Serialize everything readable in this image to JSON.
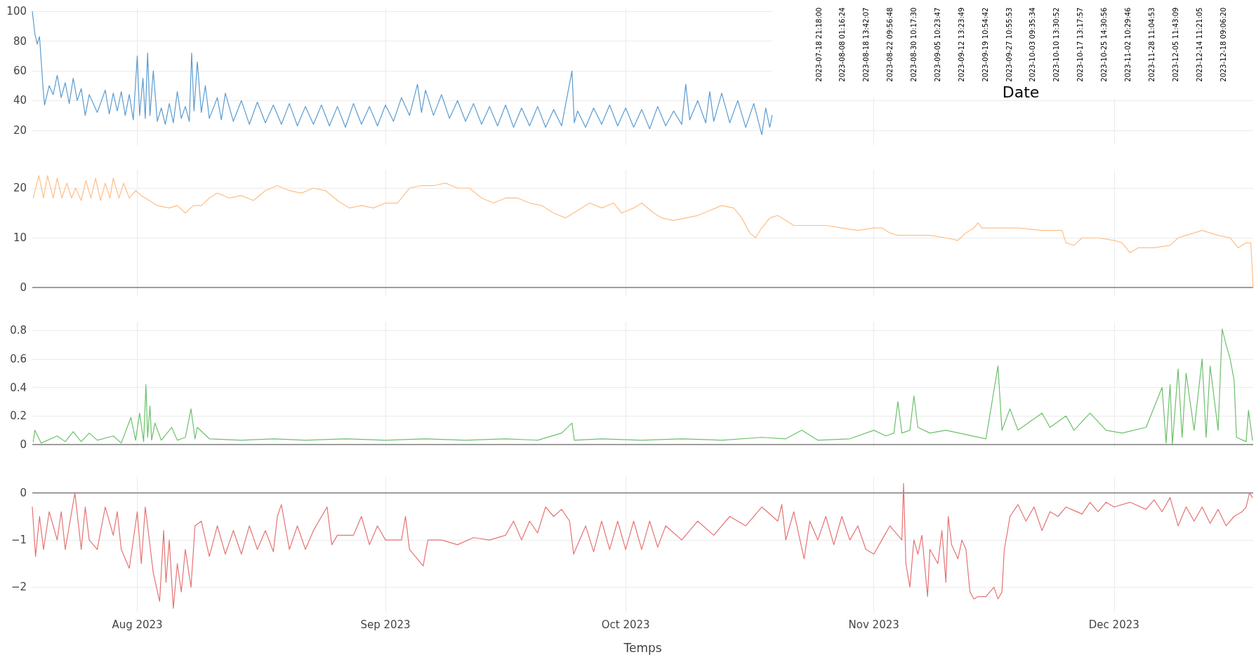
{
  "chart_data": [
    {
      "type": "line",
      "xlim": [
        "2023-07-18T21:18:00",
        "2023-12-18T09:06:20"
      ],
      "ylim": [
        10,
        102
      ],
      "yticks": [
        20,
        40,
        60,
        80,
        100
      ],
      "xticks": [
        {
          "value": "2023-08-01",
          "label": null
        },
        {
          "value": "2023-09-01",
          "label": null
        },
        {
          "value": "2023-10-01",
          "label": null
        },
        {
          "value": "2023-11-01",
          "label": null
        },
        {
          "value": "2023-12-01",
          "label": null
        }
      ],
      "tick_labels": "y",
      "grid": true,
      "marker": "none",
      "line_style": "solid",
      "series": [
        {
          "color": "#5a9bd0",
          "x": [
            "2023-07-18T21:18",
            "2023-07-19T05:00",
            "2023-07-19T12:00",
            "2023-07-19T19:00",
            "2023-07-20T05:00",
            "2023-07-20T10:00",
            "2023-07-21T00:00",
            "2023-07-21T12:00",
            "2023-07-22T00:00",
            "2023-07-22T12:00",
            "2023-07-23T00:00",
            "2023-07-23T12:00",
            "2023-07-24T00:00",
            "2023-07-24T12:00",
            "2023-07-25T00:00",
            "2023-07-25T12:00",
            "2023-07-26T00:00",
            "2023-07-27T00:00",
            "2023-07-28T00:00",
            "2023-07-28T12:00",
            "2023-07-29T00:00",
            "2023-07-29T12:00",
            "2023-07-30T00:00",
            "2023-07-30T12:00",
            "2023-07-31T00:00",
            "2023-07-31T12:00",
            "2023-08-01T00:00",
            "2023-08-01T07:00",
            "2023-08-01T17:00",
            "2023-08-02T00:00",
            "2023-08-02T07:00",
            "2023-08-02T14:00",
            "2023-08-03T00:00",
            "2023-08-03T12:00",
            "2023-08-04T00:00",
            "2023-08-04T12:00",
            "2023-08-05T00:00",
            "2023-08-05T12:00",
            "2023-08-06T00:00",
            "2023-08-06T12:00",
            "2023-08-07T00:00",
            "2023-08-07T12:00",
            "2023-08-07T19:00",
            "2023-08-08T02:00",
            "2023-08-08T12:00",
            "2023-08-09T00:00",
            "2023-08-09T12:00",
            "2023-08-10T00:00",
            "2023-08-11T00:00",
            "2023-08-11T12:00",
            "2023-08-12T00:00",
            "2023-08-13T00:00",
            "2023-08-14T00:00",
            "2023-08-15T00:00",
            "2023-08-16T00:00",
            "2023-08-17T00:00",
            "2023-08-18T00:00",
            "2023-08-19T00:00",
            "2023-08-20T00:00",
            "2023-08-21T00:00",
            "2023-08-22T00:00",
            "2023-08-23T00:00",
            "2023-08-24T00:00",
            "2023-08-25T00:00",
            "2023-08-26T00:00",
            "2023-08-27T00:00",
            "2023-08-28T00:00",
            "2023-08-29T00:00",
            "2023-08-30T00:00",
            "2023-08-31T00:00",
            "2023-09-01T00:00",
            "2023-09-02T00:00",
            "2023-09-03T00:00",
            "2023-09-04T00:00",
            "2023-09-05T00:00",
            "2023-09-05T12:00",
            "2023-09-06T00:00",
            "2023-09-07T00:00",
            "2023-09-08T00:00",
            "2023-09-09T00:00",
            "2023-09-10T00:00",
            "2023-09-11T00:00",
            "2023-09-12T00:00",
            "2023-09-13T00:00",
            "2023-09-14T00:00",
            "2023-09-15T00:00",
            "2023-09-16T00:00",
            "2023-09-17T00:00",
            "2023-09-18T00:00",
            "2023-09-19T00:00",
            "2023-09-20T00:00",
            "2023-09-21T00:00",
            "2023-09-22T00:00",
            "2023-09-23T00:00",
            "2023-09-24T07:00",
            "2023-09-24T14:00",
            "2023-09-25T00:00",
            "2023-09-26T00:00",
            "2023-09-27T00:00",
            "2023-09-28T00:00",
            "2023-09-29T00:00",
            "2023-09-30T00:00",
            "2023-10-01T00:00",
            "2023-10-02T00:00",
            "2023-10-03T00:00",
            "2023-10-04T00:00",
            "2023-10-05T00:00",
            "2023-10-06T00:00",
            "2023-10-07T00:00",
            "2023-10-08T00:00",
            "2023-10-08T12:00",
            "2023-10-09T00:00",
            "2023-10-10T00:00",
            "2023-10-11T00:00",
            "2023-10-11T12:00",
            "2023-10-12T00:00",
            "2023-10-13T00:00",
            "2023-10-14T00:00",
            "2023-10-15T00:00",
            "2023-10-16T00:00",
            "2023-10-17T00:00",
            "2023-10-18T00:00",
            "2023-10-18T12:00",
            "2023-10-19T00:00",
            "2023-10-19T07:00"
          ],
          "values": [
            100,
            85,
            78,
            83,
            50,
            37,
            50,
            44,
            57,
            42,
            52,
            38,
            55,
            40,
            48,
            30,
            44,
            32,
            47,
            31,
            45,
            33,
            46,
            30,
            44,
            27,
            70,
            30,
            55,
            28,
            72,
            30,
            60,
            26,
            35,
            24,
            38,
            25,
            46,
            28,
            36,
            26,
            72,
            33,
            66,
            32,
            50,
            28,
            42,
            27,
            45,
            26,
            40,
            24,
            39,
            25,
            37,
            24,
            38,
            23,
            36,
            24,
            37,
            23,
            36,
            22,
            38,
            24,
            36,
            23,
            37,
            26,
            42,
            30,
            51,
            32,
            47,
            30,
            44,
            28,
            40,
            26,
            38,
            24,
            36,
            23,
            37,
            22,
            35,
            23,
            36,
            22,
            34,
            23,
            60,
            25,
            33,
            22,
            35,
            24,
            37,
            23,
            35,
            22,
            34,
            21,
            36,
            23,
            33,
            24,
            51,
            27,
            40,
            25,
            46,
            26,
            45,
            25,
            40,
            22,
            38,
            17,
            35,
            22,
            30
          ]
        }
      ]
    },
    {
      "type": "line",
      "xlim": [
        "2023-07-18T21:18:00",
        "2023-12-18T09:06:20"
      ],
      "ylim": [
        -1.8,
        23.7
      ],
      "yticks": [
        0,
        10,
        20
      ],
      "xticks": [
        {
          "value": "2023-08-01",
          "label": null
        },
        {
          "value": "2023-09-01",
          "label": null
        },
        {
          "value": "2023-10-01",
          "label": null
        },
        {
          "value": "2023-11-01",
          "label": null
        },
        {
          "value": "2023-12-01",
          "label": null
        }
      ],
      "tick_labels": "y",
      "grid": true,
      "marker": "none",
      "line_style": "solid",
      "ref_lines": [
        {
          "axis": "y",
          "value": 0,
          "color": "#808080"
        }
      ],
      "series": [
        {
          "color": "#ffbe85",
          "x": [
            "2023-07-19T00:00",
            "2023-07-19T17:00",
            "2023-07-20T07:00",
            "2023-07-20T19:00",
            "2023-07-21T12:00",
            "2023-07-22T00:00",
            "2023-07-22T14:00",
            "2023-07-23T05:00",
            "2023-07-23T19:00",
            "2023-07-24T07:00",
            "2023-07-25T00:00",
            "2023-07-25T14:00",
            "2023-07-26T05:00",
            "2023-07-26T19:00",
            "2023-07-27T10:00",
            "2023-07-28T00:00",
            "2023-07-28T14:00",
            "2023-07-29T00:00",
            "2023-07-29T17:00",
            "2023-07-30T07:00",
            "2023-07-31T00:00",
            "2023-07-31T19:00",
            "2023-08-01T12:00",
            "2023-08-02T12:00",
            "2023-08-03T12:00",
            "2023-08-05T00:00",
            "2023-08-06T00:00",
            "2023-08-07T00:00",
            "2023-08-08T00:00",
            "2023-08-09T00:00",
            "2023-08-10T00:00",
            "2023-08-11T00:00",
            "2023-08-12T12:00",
            "2023-08-14T00:00",
            "2023-08-15T12:00",
            "2023-08-17T00:00",
            "2023-08-18T12:00",
            "2023-08-20T00:00",
            "2023-08-21T12:00",
            "2023-08-23T00:00",
            "2023-08-24T12:00",
            "2023-08-26T00:00",
            "2023-08-27T12:00",
            "2023-08-29T00:00",
            "2023-08-30T12:00",
            "2023-09-01T00:00",
            "2023-09-02T12:00",
            "2023-09-04T00:00",
            "2023-09-05T12:00",
            "2023-09-07T00:00",
            "2023-09-08T12:00",
            "2023-09-10T00:00",
            "2023-09-11T12:00",
            "2023-09-13T00:00",
            "2023-09-14T12:00",
            "2023-09-16T00:00",
            "2023-09-17T12:00",
            "2023-09-19T00:00",
            "2023-09-20T12:00",
            "2023-09-22T00:00",
            "2023-09-23T12:00",
            "2023-09-25T00:00",
            "2023-09-26T12:00",
            "2023-09-28T00:00",
            "2023-09-29T12:00",
            "2023-09-30T12:00",
            "2023-10-02T00:00",
            "2023-10-03T00:00",
            "2023-10-04T12:00",
            "2023-10-05T12:00",
            "2023-10-07T00:00",
            "2023-10-08T12:00",
            "2023-10-10T00:00",
            "2023-10-11T12:00",
            "2023-10-13T00:00",
            "2023-10-14T12:00",
            "2023-10-15T12:00",
            "2023-10-16T12:00",
            "2023-10-17T05:00",
            "2023-10-18T00:00",
            "2023-10-19T00:00",
            "2023-10-20T00:00",
            "2023-10-21T00:00",
            "2023-10-22T00:00",
            "2023-10-24T00:00",
            "2023-10-26T00:00",
            "2023-10-28T00:00",
            "2023-10-30T00:00",
            "2023-11-01T00:00",
            "2023-11-02T00:00",
            "2023-11-03T00:00",
            "2023-11-04T00:00",
            "2023-11-06T00:00",
            "2023-11-08T00:00",
            "2023-11-10T00:00",
            "2023-11-11T12:00",
            "2023-11-12T12:00",
            "2023-11-13T12:00",
            "2023-11-14T00:00",
            "2023-11-14T12:00",
            "2023-11-17T00:00",
            "2023-11-19T00:00",
            "2023-11-22T00:00",
            "2023-11-24T12:00",
            "2023-11-25T00:00",
            "2023-11-26T00:00",
            "2023-11-27T00:00",
            "2023-11-29T00:00",
            "2023-12-01T00:00",
            "2023-12-02T00:00",
            "2023-12-03T00:00",
            "2023-12-04T00:00",
            "2023-12-06T00:00",
            "2023-12-08T00:00",
            "2023-12-09T00:00",
            "2023-12-10T00:00",
            "2023-12-12T00:00",
            "2023-12-14T00:00",
            "2023-12-15T12:00",
            "2023-12-16T12:00",
            "2023-12-17T12:00",
            "2023-12-18T02:00",
            "2023-12-18T09:00"
          ],
          "values": [
            18,
            22.5,
            18,
            22.5,
            18,
            22,
            18,
            21,
            18,
            20,
            17.5,
            21.5,
            18,
            22,
            17.5,
            21,
            18,
            22,
            18,
            21,
            18,
            19.5,
            18.5,
            17.5,
            16.5,
            16,
            16.5,
            15,
            16.5,
            16.5,
            18,
            19,
            18,
            18.5,
            17.5,
            19.5,
            20.5,
            19.5,
            19,
            20,
            19.5,
            17.5,
            16,
            16.5,
            16,
            17,
            17,
            20,
            20.5,
            20.5,
            21,
            20,
            20,
            18,
            17,
            18,
            18,
            17,
            16.5,
            15,
            14,
            15.5,
            17,
            16,
            17,
            15,
            16,
            17,
            15,
            14,
            13.5,
            14,
            14.5,
            15.5,
            16.5,
            16,
            14,
            11,
            10,
            12,
            14,
            14.5,
            13.5,
            12.5,
            12.5,
            12.5,
            12,
            11.5,
            12,
            12,
            11,
            10.5,
            10.5,
            10.5,
            10,
            9.5,
            11,
            12,
            13,
            12,
            12,
            12,
            11.5,
            11.5,
            9,
            8.5,
            10,
            10,
            9.5,
            9,
            7,
            8,
            8,
            8.5,
            10,
            10.5,
            11.5,
            10.5,
            10,
            8,
            9,
            9,
            0
          ]
        }
      ]
    },
    {
      "type": "line",
      "xlim": [
        "2023-07-18T21:18:00",
        "2023-12-18T09:06:20"
      ],
      "ylim": [
        -0.02,
        0.86
      ],
      "yticks": [
        0,
        0.2,
        0.4,
        0.6,
        0.8
      ],
      "xticks": [
        {
          "value": "2023-08-01",
          "label": null
        },
        {
          "value": "2023-09-01",
          "label": null
        },
        {
          "value": "2023-10-01",
          "label": null
        },
        {
          "value": "2023-11-01",
          "label": null
        },
        {
          "value": "2023-12-01",
          "label": null
        }
      ],
      "tick_labels": "y",
      "grid": true,
      "marker": "none",
      "line_style": "solid",
      "ref_lines": [
        {
          "axis": "y",
          "value": 0,
          "color": "#808080"
        }
      ],
      "series": [
        {
          "color": "#6cc06c",
          "x": [
            "2023-07-19T00:00",
            "2023-07-19T05:00",
            "2023-07-20T00:00",
            "2023-07-22T00:00",
            "2023-07-23T00:00",
            "2023-07-24T00:00",
            "2023-07-25T00:00",
            "2023-07-26T00:00",
            "2023-07-27T00:00",
            "2023-07-29T00:00",
            "2023-07-30T00:00",
            "2023-07-31T05:00",
            "2023-07-31T19:00",
            "2023-08-01T07:00",
            "2023-08-01T19:00",
            "2023-08-02T02:00",
            "2023-08-02T07:00",
            "2023-08-02T14:00",
            "2023-08-02T19:00",
            "2023-08-03T05:00",
            "2023-08-04T00:00",
            "2023-08-05T07:00",
            "2023-08-06T00:00",
            "2023-08-07T00:00",
            "2023-08-07T17:00",
            "2023-08-08T05:00",
            "2023-08-08T12:00",
            "2023-08-10T00:00",
            "2023-08-14T00:00",
            "2023-08-18T00:00",
            "2023-08-22T00:00",
            "2023-08-27T00:00",
            "2023-09-01T00:00",
            "2023-09-06T00:00",
            "2023-09-11T00:00",
            "2023-09-16T00:00",
            "2023-09-20T00:00",
            "2023-09-23T00:00",
            "2023-09-24T07:00",
            "2023-09-24T14:00",
            "2023-09-28T00:00",
            "2023-10-03T00:00",
            "2023-10-08T00:00",
            "2023-10-13T00:00",
            "2023-10-18T00:00",
            "2023-10-21T00:00",
            "2023-10-23T00:00",
            "2023-10-25T00:00",
            "2023-10-29T00:00",
            "2023-11-01T00:00",
            "2023-11-02T12:00",
            "2023-11-03T12:00",
            "2023-11-04T00:00",
            "2023-11-04T12:00",
            "2023-11-05T12:00",
            "2023-11-06T00:00",
            "2023-11-06T12:00",
            "2023-11-08T00:00",
            "2023-11-10T00:00",
            "2023-11-15T00:00",
            "2023-11-16T00:00",
            "2023-11-16T12:00",
            "2023-11-17T00:00",
            "2023-11-18T00:00",
            "2023-11-19T00:00",
            "2023-11-22T00:00",
            "2023-11-23T00:00",
            "2023-11-25T00:00",
            "2023-11-26T00:00",
            "2023-11-28T00:00",
            "2023-11-30T00:00",
            "2023-12-02T00:00",
            "2023-12-05T00:00",
            "2023-12-07T00:00",
            "2023-12-07T12:00",
            "2023-12-08T00:00",
            "2023-12-08T07:00",
            "2023-12-09T00:00",
            "2023-12-09T12:00",
            "2023-12-10T00:00",
            "2023-12-11T00:00",
            "2023-12-12T00:00",
            "2023-12-12T12:00",
            "2023-12-13T00:00",
            "2023-12-14T00:00",
            "2023-12-14T12:00",
            "2023-12-15T00:00",
            "2023-12-15T12:00",
            "2023-12-16T00:00",
            "2023-12-16T07:00",
            "2023-12-17T12:00",
            "2023-12-17T19:00",
            "2023-12-18T07:00"
          ],
          "values": [
            0.02,
            0.1,
            0.01,
            0.06,
            0.02,
            0.09,
            0.02,
            0.08,
            0.03,
            0.06,
            0.01,
            0.19,
            0.03,
            0.22,
            0.02,
            0.42,
            0.05,
            0.27,
            0.03,
            0.15,
            0.03,
            0.12,
            0.03,
            0.05,
            0.25,
            0.04,
            0.12,
            0.04,
            0.03,
            0.04,
            0.03,
            0.04,
            0.03,
            0.04,
            0.03,
            0.04,
            0.03,
            0.08,
            0.15,
            0.03,
            0.04,
            0.03,
            0.04,
            0.03,
            0.05,
            0.04,
            0.1,
            0.03,
            0.04,
            0.1,
            0.06,
            0.08,
            0.3,
            0.08,
            0.1,
            0.34,
            0.12,
            0.08,
            0.1,
            0.04,
            0.38,
            0.55,
            0.1,
            0.25,
            0.1,
            0.22,
            0.12,
            0.2,
            0.1,
            0.22,
            0.1,
            0.08,
            0.12,
            0.4,
            0.01,
            0.42,
            0,
            0.53,
            0.05,
            0.5,
            0.1,
            0.6,
            0.05,
            0.55,
            0.1,
            0.81,
            0.7,
            0.6,
            0.45,
            0.05,
            0.02,
            0.24,
            0.03
          ]
        }
      ]
    },
    {
      "type": "line",
      "xlabel": "Temps",
      "xlim": [
        "2023-07-18T21:18:00",
        "2023-12-18T09:06:20"
      ],
      "ylim": [
        -2.53,
        0.34
      ],
      "yticks": [
        {
          "value": -2,
          "label": "−2"
        },
        {
          "value": -1,
          "label": "−1"
        },
        0
      ],
      "xticks": [
        {
          "value": "2023-08-01",
          "label": "Aug 2023"
        },
        {
          "value": "2023-09-01",
          "label": "Sep 2023"
        },
        {
          "value": "2023-10-01",
          "label": "Oct 2023"
        },
        {
          "value": "2023-11-01",
          "label": "Nov 2023"
        },
        {
          "value": "2023-12-01",
          "label": "Dec 2023"
        }
      ],
      "grid": true,
      "marker": "none",
      "line_style": "solid",
      "ref_lines": [
        {
          "axis": "y",
          "value": 0,
          "color": "#808080"
        }
      ],
      "series": [
        {
          "color": "#e57373",
          "x": [
            "2023-07-18T21:18",
            "2023-07-19T07:00",
            "2023-07-19T19:00",
            "2023-07-20T07:00",
            "2023-07-21T00:00",
            "2023-07-22T00:00",
            "2023-07-22T12:00",
            "2023-07-23T00:00",
            "2023-07-24T05:00",
            "2023-07-25T00:00",
            "2023-07-25T12:00",
            "2023-07-26T00:00",
            "2023-07-27T00:00",
            "2023-07-28T00:00",
            "2023-07-29T00:00",
            "2023-07-29T12:00",
            "2023-07-30T00:00",
            "2023-07-31T00:00",
            "2023-08-01T00:00",
            "2023-08-01T12:00",
            "2023-08-02T00:00",
            "2023-08-03T00:00",
            "2023-08-03T19:00",
            "2023-08-04T07:00",
            "2023-08-04T14:00",
            "2023-08-05T00:00",
            "2023-08-05T12:00",
            "2023-08-06T00:00",
            "2023-08-06T12:00",
            "2023-08-07T00:00",
            "2023-08-07T17:00",
            "2023-08-08T05:00",
            "2023-08-09T00:00",
            "2023-08-10T00:00",
            "2023-08-11T00:00",
            "2023-08-12T00:00",
            "2023-08-13T00:00",
            "2023-08-14T00:00",
            "2023-08-15T00:00",
            "2023-08-16T00:00",
            "2023-08-17T00:00",
            "2023-08-18T00:00",
            "2023-08-18T12:00",
            "2023-08-19T00:00",
            "2023-08-20T00:00",
            "2023-08-21T00:00",
            "2023-08-22T00:00",
            "2023-08-23T00:00",
            "2023-08-24T17:00",
            "2023-08-25T07:00",
            "2023-08-26T00:00",
            "2023-08-28T00:00",
            "2023-08-29T00:00",
            "2023-08-30T00:00",
            "2023-08-31T00:00",
            "2023-09-01T00:00",
            "2023-09-03T00:00",
            "2023-09-03T12:00",
            "2023-09-04T00:00",
            "2023-09-05T17:00",
            "2023-09-06T07:00",
            "2023-09-08T00:00",
            "2023-09-10T00:00",
            "2023-09-12T00:00",
            "2023-09-14T00:00",
            "2023-09-16T00:00",
            "2023-09-17T00:00",
            "2023-09-18T00:00",
            "2023-09-19T00:00",
            "2023-09-20T00:00",
            "2023-09-21T00:00",
            "2023-09-22T00:00",
            "2023-09-23T00:00",
            "2023-09-24T00:00",
            "2023-09-24T12:00",
            "2023-09-26T00:00",
            "2023-09-27T00:00",
            "2023-09-28T00:00",
            "2023-09-29T00:00",
            "2023-09-30T00:00",
            "2023-10-01T00:00",
            "2023-10-02T00:00",
            "2023-10-03T00:00",
            "2023-10-04T00:00",
            "2023-10-05T00:00",
            "2023-10-06T00:00",
            "2023-10-08T00:00",
            "2023-10-10T00:00",
            "2023-10-12T00:00",
            "2023-10-14T00:00",
            "2023-10-16T00:00",
            "2023-10-18T00:00",
            "2023-10-20T00:00",
            "2023-10-20T12:00",
            "2023-10-21T00:00",
            "2023-10-22T00:00",
            "2023-10-23T07:00",
            "2023-10-24T00:00",
            "2023-10-25T00:00",
            "2023-10-26T00:00",
            "2023-10-27T00:00",
            "2023-10-28T00:00",
            "2023-10-29T00:00",
            "2023-10-30T00:00",
            "2023-10-31T00:00",
            "2023-11-01T00:00",
            "2023-11-02T00:00",
            "2023-11-03T00:00",
            "2023-11-04T12:00",
            "2023-11-04T17:00",
            "2023-11-05T00:00",
            "2023-11-05T12:00",
            "2023-11-06T00:00",
            "2023-11-06T12:00",
            "2023-11-07T00:00",
            "2023-11-07T17:00",
            "2023-11-08T00:00",
            "2023-11-09T00:00",
            "2023-11-09T12:00",
            "2023-11-10T00:00",
            "2023-11-10T07:00",
            "2023-11-10T17:00",
            "2023-11-11T12:00",
            "2023-11-12T00:00",
            "2023-11-12T12:00",
            "2023-11-13T00:00",
            "2023-11-13T12:00",
            "2023-11-14T00:00",
            "2023-11-15T00:00",
            "2023-11-16T00:00",
            "2023-11-16T12:00",
            "2023-11-17T00:00",
            "2023-11-17T07:00",
            "2023-11-17T17:00",
            "2023-11-18T00:00",
            "2023-11-19T00:00",
            "2023-11-20T00:00",
            "2023-11-21T00:00",
            "2023-11-22T00:00",
            "2023-11-23T00:00",
            "2023-11-24T00:00",
            "2023-11-25T00:00",
            "2023-11-27T00:00",
            "2023-11-28T00:00",
            "2023-11-29T00:00",
            "2023-11-30T00:00",
            "2023-12-01T00:00",
            "2023-12-03T00:00",
            "2023-12-05T00:00",
            "2023-12-06T00:00",
            "2023-12-07T00:00",
            "2023-12-08T00:00",
            "2023-12-09T00:00",
            "2023-12-10T00:00",
            "2023-12-11T00:00",
            "2023-12-12T00:00",
            "2023-12-13T00:00",
            "2023-12-14T00:00",
            "2023-12-15T00:00",
            "2023-12-16T00:00",
            "2023-12-17T00:00",
            "2023-12-17T12:00",
            "2023-12-17T22:00",
            "2023-12-18T07:00"
          ],
          "values": [
            -0.3,
            -1.35,
            -0.5,
            -1.2,
            -0.4,
            -1,
            -0.4,
            -1.2,
            0,
            -1.2,
            -0.3,
            -1,
            -1.2,
            -0.3,
            -0.9,
            -0.4,
            -1.2,
            -1.6,
            -0.4,
            -1.5,
            -0.3,
            -1.7,
            -2.3,
            -0.8,
            -1.9,
            -1,
            -2.45,
            -1.5,
            -2.1,
            -1.2,
            -2,
            -0.7,
            -0.6,
            -1.35,
            -0.7,
            -1.3,
            -0.8,
            -1.3,
            -0.7,
            -1.2,
            -0.8,
            -1.25,
            -0.5,
            -0.25,
            -1.2,
            -0.7,
            -1.2,
            -0.8,
            -0.3,
            -1.1,
            -0.9,
            -0.9,
            -0.5,
            -1.1,
            -0.7,
            -1,
            -1,
            -0.5,
            -1.2,
            -1.55,
            -1,
            -1,
            -1.1,
            -0.95,
            -1,
            -0.9,
            -0.6,
            -1,
            -0.6,
            -0.85,
            -0.3,
            -0.5,
            -0.35,
            -0.6,
            -1.3,
            -0.7,
            -1.25,
            -0.6,
            -1.2,
            -0.6,
            -1.2,
            -0.6,
            -1.2,
            -0.6,
            -1.15,
            -0.7,
            -1,
            -0.6,
            -0.9,
            -0.5,
            -0.7,
            -0.3,
            -0.6,
            -0.25,
            -1,
            -0.4,
            -1.4,
            -0.6,
            -1,
            -0.5,
            -1.1,
            -0.5,
            -1,
            -0.7,
            -1.2,
            -1.3,
            -1,
            -0.7,
            -1,
            0.2,
            -1.5,
            -2,
            -1,
            -1.3,
            -0.9,
            -2.2,
            -1.2,
            -1.5,
            -0.8,
            -1.9,
            -0.5,
            -1.1,
            -1.4,
            -1,
            -1.2,
            -2.1,
            -2.25,
            -2.2,
            -2.2,
            -2,
            -2.25,
            -2.1,
            -1.2,
            -0.8,
            -0.5,
            -0.25,
            -0.6,
            -0.3,
            -0.8,
            -0.4,
            -0.5,
            -0.3,
            -0.45,
            -0.2,
            -0.4,
            -0.2,
            -0.3,
            -0.2,
            -0.35,
            -0.15,
            -0.4,
            -0.1,
            -0.7,
            -0.3,
            -0.6,
            -0.3,
            -0.65,
            -0.35,
            -0.7,
            -0.5,
            -0.4,
            -0.3,
            0,
            -0.1
          ]
        }
      ]
    },
    {
      "type": "other",
      "xlabel": "Date",
      "categories": [
        "2023-07-18 21:18:00",
        "2023-08-08 01:16:24",
        "2023-08-18 13:42:07",
        "2023-08-22 09:56:48",
        "2023-08-30 10:17:30",
        "2023-09-05 10:23:47",
        "2023-09-12 13:23:49",
        "2023-09-19 10:54:42",
        "2023-09-27 10:55:53",
        "2023-10-03 09:35:34",
        "2023-10-10 13:30:52",
        "2023-10-17 13:17:57",
        "2023-10-25 14:30:56",
        "2023-11-02 10:29:46",
        "2023-11-28 11:04:53",
        "2023-12-05 11:43:09",
        "2023-12-14 11:21:05",
        "2023-12-18 09:06:20"
      ]
    }
  ]
}
